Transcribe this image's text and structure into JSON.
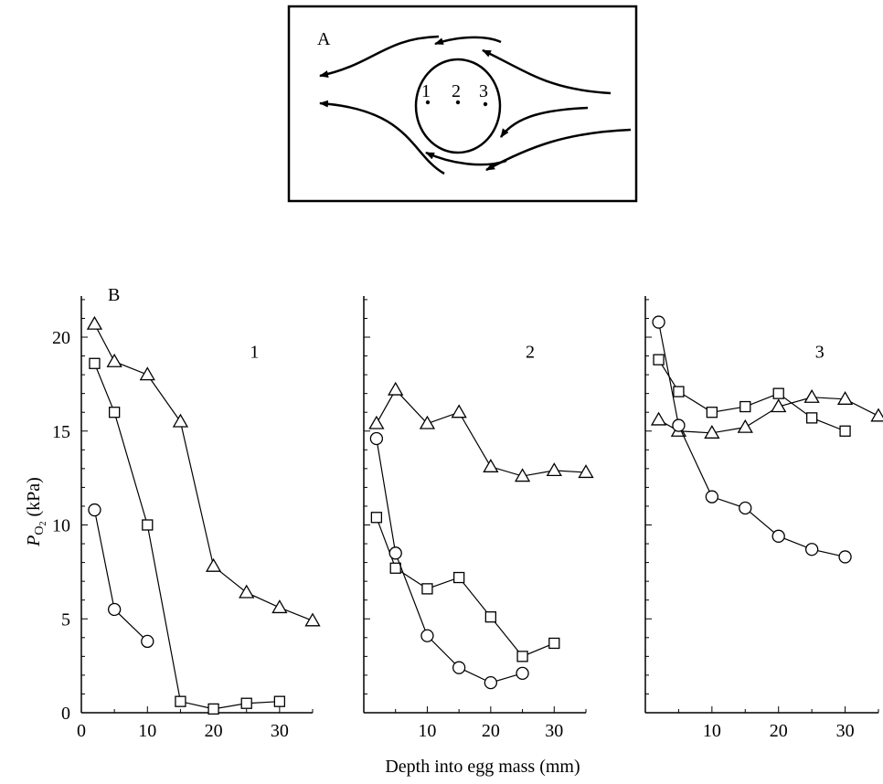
{
  "panel_a": {
    "label": "A",
    "points": [
      "1",
      "2",
      "3"
    ]
  },
  "panel_b": {
    "label": "B",
    "ylabel_main": "P",
    "ylabel_sub": "O",
    "ylabel_subsub": "2",
    "ylabel_unit": " (kPa)",
    "xlabel": "Depth into egg mass (mm)"
  },
  "chart_data": [
    {
      "type": "line",
      "panel": "1",
      "xlabel": "Depth into egg mass (mm)",
      "ylabel": "PO2 (kPa)",
      "xlim": [
        0,
        35
      ],
      "ylim": [
        0,
        22
      ],
      "xticks": [
        0,
        10,
        20,
        30
      ],
      "yticks": [
        0,
        5,
        10,
        15,
        20
      ],
      "series": [
        {
          "marker": "triangle",
          "points": [
            [
              2,
              20.7
            ],
            [
              5,
              18.7
            ],
            [
              10,
              18.0
            ],
            [
              15,
              15.5
            ],
            [
              20,
              7.8
            ],
            [
              25,
              6.4
            ],
            [
              30,
              5.6
            ],
            [
              35,
              4.9
            ]
          ]
        },
        {
          "marker": "square",
          "points": [
            [
              2,
              18.6
            ],
            [
              5,
              16.0
            ],
            [
              10,
              10.0
            ],
            [
              15,
              0.6
            ],
            [
              20,
              0.2
            ],
            [
              25,
              0.5
            ],
            [
              30,
              0.6
            ]
          ]
        },
        {
          "marker": "circle",
          "points": [
            [
              2,
              10.8
            ],
            [
              5,
              5.5
            ],
            [
              10,
              3.8
            ]
          ]
        }
      ]
    },
    {
      "type": "line",
      "panel": "2",
      "xlim": [
        0,
        35
      ],
      "ylim": [
        0,
        22
      ],
      "xticks": [
        0,
        10,
        20,
        30
      ],
      "series": [
        {
          "marker": "triangle",
          "points": [
            [
              2,
              15.4
            ],
            [
              5,
              17.2
            ],
            [
              10,
              15.4
            ],
            [
              15,
              16.0
            ],
            [
              20,
              13.1
            ],
            [
              25,
              12.6
            ],
            [
              30,
              12.9
            ],
            [
              35,
              12.8
            ]
          ]
        },
        {
          "marker": "square",
          "points": [
            [
              2,
              10.4
            ],
            [
              5,
              7.7
            ],
            [
              10,
              6.6
            ],
            [
              15,
              7.2
            ],
            [
              20,
              5.1
            ],
            [
              25,
              3.0
            ],
            [
              30,
              3.7
            ]
          ]
        },
        {
          "marker": "circle",
          "points": [
            [
              2,
              14.6
            ],
            [
              5,
              8.5
            ],
            [
              10,
              4.1
            ],
            [
              15,
              2.4
            ],
            [
              20,
              1.6
            ],
            [
              25,
              2.1
            ]
          ]
        }
      ]
    },
    {
      "type": "line",
      "panel": "3",
      "xlim": [
        0,
        35
      ],
      "ylim": [
        0,
        22
      ],
      "xticks": [
        0,
        10,
        20,
        30
      ],
      "series": [
        {
          "marker": "triangle",
          "points": [
            [
              2,
              15.6
            ],
            [
              5,
              15.0
            ],
            [
              10,
              14.9
            ],
            [
              15,
              15.2
            ],
            [
              20,
              16.3
            ],
            [
              25,
              16.8
            ],
            [
              30,
              16.7
            ],
            [
              35,
              15.8
            ]
          ]
        },
        {
          "marker": "square",
          "points": [
            [
              2,
              18.8
            ],
            [
              5,
              17.1
            ],
            [
              10,
              16.0
            ],
            [
              15,
              16.3
            ],
            [
              20,
              17.0
            ],
            [
              25,
              15.7
            ],
            [
              30,
              15.0
            ]
          ]
        },
        {
          "marker": "circle",
          "points": [
            [
              2,
              20.8
            ],
            [
              5,
              15.3
            ],
            [
              10,
              11.5
            ],
            [
              15,
              10.9
            ],
            [
              20,
              9.4
            ],
            [
              25,
              8.7
            ],
            [
              30,
              8.3
            ]
          ]
        }
      ]
    }
  ]
}
